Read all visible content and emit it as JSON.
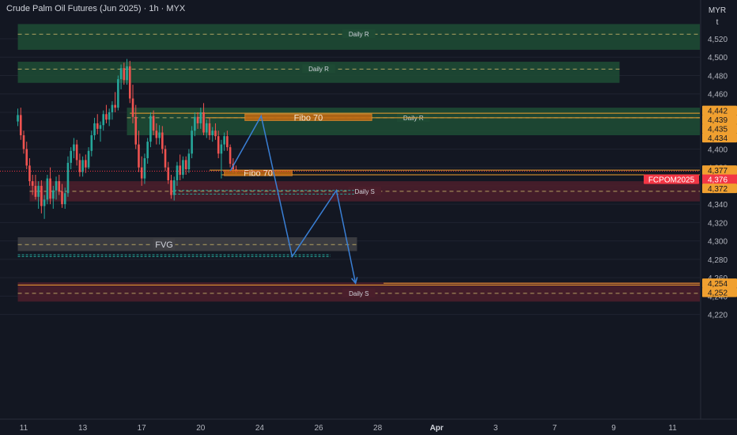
{
  "header": {
    "title": "Crude Palm Oil Futures (Jun 2025) · 1h · MYX",
    "currency_top": "MYR",
    "currency_bottom": "t"
  },
  "colors": {
    "background": "#131722",
    "resistance_zone": "#1e4a34",
    "support_zone": "#4a1e2b",
    "fvg_zone": "#3f3f44",
    "fibo_zone": "#c46a12",
    "bull_candle": "#26a69a",
    "bear_candle": "#ef5350",
    "projection": "#3a7fd5",
    "cyan_line": "#26a69a",
    "orange_line": "#f0a030",
    "price_tag": "#f23645"
  },
  "chart_data": {
    "type": "candlestick",
    "symbol": "FCPOM2025",
    "y_axis": {
      "ticks": [
        4520,
        4500,
        4480,
        4460,
        4440,
        4420,
        4400,
        4380,
        4360,
        4340,
        4320,
        4300,
        4280,
        4260,
        4240,
        4220
      ],
      "tick_labels": [
        "4,520",
        "4,500",
        "4,480",
        "4,460",
        "4,440",
        "4,420",
        "4,400",
        "4,380",
        "4,360",
        "4,340",
        "4,320",
        "4,300",
        "4,280",
        "4,260",
        "4,240",
        "4,220"
      ],
      "range": [
        4211,
        4536
      ]
    },
    "x_axis": {
      "labels": [
        "11",
        "13",
        "17",
        "20",
        "24",
        "26",
        "28",
        "Apr",
        "3",
        "7",
        "9",
        "11"
      ],
      "label_day_index": [
        0,
        2,
        4,
        6,
        8,
        10,
        12,
        14,
        16,
        18,
        20,
        22
      ]
    },
    "price_tags": [
      {
        "label": "4,442",
        "value": 4442,
        "color": "#f0a030"
      },
      {
        "label": "4,439",
        "value": 4439,
        "color": "#f0a030"
      },
      {
        "label": "4,435",
        "value": 4435,
        "color": "#f0a030"
      },
      {
        "label": "4,434",
        "value": 4434,
        "color": "#f0a030"
      },
      {
        "label": "4,377",
        "value": 4377,
        "color": "#f0a030"
      },
      {
        "label": "4,376",
        "value": 4376,
        "color": "#f23645"
      },
      {
        "label": "4,372",
        "value": 4372,
        "color": "#f0a030"
      },
      {
        "label": "4,254",
        "value": 4254,
        "color": "#f0a030"
      },
      {
        "label": "4,252",
        "value": 4252,
        "color": "#f0a030"
      }
    ],
    "symbol_tag": {
      "label": "FCPOM2025",
      "value": 4376
    },
    "zones": [
      {
        "label": "Daily R",
        "kind": "resistance",
        "y_top": 4536,
        "y_bottom": 4508,
        "mid": 4525,
        "x_start": -0.2,
        "x_end": 23.8
      },
      {
        "label": "Daily R",
        "kind": "resistance",
        "y_top": 4495,
        "y_bottom": 4472,
        "mid": 4487,
        "x_start": -0.2,
        "x_end": 20.2
      },
      {
        "label": "Daily R",
        "kind": "resistance",
        "y_top": 4445,
        "y_bottom": 4415,
        "mid": 4434,
        "x_start": 3.5,
        "x_end": 23.8
      },
      {
        "label": "Daily S",
        "kind": "support",
        "y_top": 4365,
        "y_bottom": 4343,
        "mid": 4354,
        "x_start": 0.2,
        "x_end": 23.8
      },
      {
        "label": "FVG",
        "kind": "fvg",
        "y_top": 4304,
        "y_bottom": 4289,
        "mid": 4296,
        "x_start": -0.2,
        "x_end": 11.3
      },
      {
        "label": "Daily S",
        "kind": "support",
        "y_top": 4255,
        "y_bottom": 4234,
        "mid": 4243,
        "x_start": -0.2,
        "x_end": 23.8
      }
    ],
    "fibo_boxes": [
      {
        "label": "Fibo 70",
        "y_top": 4438,
        "y_bottom": 4431,
        "x_start": 7.5,
        "x_end": 11.8
      },
      {
        "label": "Fibo 70",
        "y_top": 4377,
        "y_bottom": 4371,
        "x_start": 6.8,
        "x_end": 9.1
      }
    ],
    "horizontal_lines": [
      {
        "kind": "cyan",
        "y": 4355,
        "x_start": 5.1,
        "x_end": 11.2
      },
      {
        "kind": "cyan",
        "y": 4351,
        "x_start": 5.1,
        "x_end": 11.2
      },
      {
        "kind": "cyan",
        "y": 4285,
        "x_start": -0.2,
        "x_end": 10.4
      },
      {
        "kind": "cyan",
        "y": 4283,
        "x_start": -0.2,
        "x_end": 10.4
      },
      {
        "kind": "orange",
        "y": 4439,
        "x_start": 3.6,
        "x_end": 23.8
      },
      {
        "kind": "orange",
        "y": 4434,
        "x_start": 6.2,
        "x_end": 23.8
      },
      {
        "kind": "orange",
        "y": 4377,
        "x_start": 6.3,
        "x_end": 23.8
      },
      {
        "kind": "orange",
        "y": 4372,
        "x_start": 6.7,
        "x_end": 23.8
      },
      {
        "kind": "orange",
        "y": 4254,
        "x_start": 12.2,
        "x_end": 23.8
      },
      {
        "kind": "orange",
        "y": 4252,
        "x_start": -0.2,
        "x_end": 23.8
      }
    ],
    "current_price": 4376,
    "projection_path": [
      {
        "x": 7.0,
        "y": 4376
      },
      {
        "x": 8.05,
        "y": 4436
      },
      {
        "x": 9.1,
        "y": 4283
      },
      {
        "x": 10.6,
        "y": 4355
      },
      {
        "x": 11.25,
        "y": 4254
      }
    ],
    "candles": [
      {
        "x": -0.2,
        "o": 4430,
        "h": 4444,
        "l": 4425,
        "c": 4437
      },
      {
        "x": -0.1,
        "o": 4437,
        "h": 4445,
        "l": 4410,
        "c": 4415
      },
      {
        "x": 0.0,
        "o": 4415,
        "h": 4420,
        "l": 4395,
        "c": 4400
      },
      {
        "x": 0.1,
        "o": 4400,
        "h": 4408,
        "l": 4378,
        "c": 4382
      },
      {
        "x": 0.2,
        "o": 4382,
        "h": 4390,
        "l": 4360,
        "c": 4365
      },
      {
        "x": 0.3,
        "o": 4365,
        "h": 4372,
        "l": 4350,
        "c": 4360
      },
      {
        "x": 0.4,
        "o": 4360,
        "h": 4372,
        "l": 4345,
        "c": 4348
      },
      {
        "x": 0.5,
        "o": 4348,
        "h": 4365,
        "l": 4335,
        "c": 4360
      },
      {
        "x": 0.6,
        "o": 4360,
        "h": 4366,
        "l": 4330,
        "c": 4338
      },
      {
        "x": 0.7,
        "o": 4338,
        "h": 4350,
        "l": 4324,
        "c": 4345
      },
      {
        "x": 0.8,
        "o": 4345,
        "h": 4372,
        "l": 4340,
        "c": 4368
      },
      {
        "x": 0.9,
        "o": 4368,
        "h": 4380,
        "l": 4340,
        "c": 4346
      },
      {
        "x": 1.0,
        "o": 4346,
        "h": 4360,
        "l": 4335,
        "c": 4355
      },
      {
        "x": 1.1,
        "o": 4355,
        "h": 4370,
        "l": 4345,
        "c": 4365
      },
      {
        "x": 1.2,
        "o": 4365,
        "h": 4372,
        "l": 4350,
        "c": 4354
      },
      {
        "x": 1.3,
        "o": 4354,
        "h": 4362,
        "l": 4336,
        "c": 4340
      },
      {
        "x": 1.4,
        "o": 4340,
        "h": 4358,
        "l": 4335,
        "c": 4352
      },
      {
        "x": 1.5,
        "o": 4352,
        "h": 4392,
        "l": 4348,
        "c": 4385
      },
      {
        "x": 1.6,
        "o": 4385,
        "h": 4402,
        "l": 4378,
        "c": 4398
      },
      {
        "x": 1.7,
        "o": 4398,
        "h": 4412,
        "l": 4390,
        "c": 4405
      },
      {
        "x": 1.8,
        "o": 4405,
        "h": 4410,
        "l": 4382,
        "c": 4388
      },
      {
        "x": 1.9,
        "o": 4388,
        "h": 4395,
        "l": 4370,
        "c": 4375
      },
      {
        "x": 2.0,
        "o": 4375,
        "h": 4392,
        "l": 4370,
        "c": 4388
      },
      {
        "x": 2.1,
        "o": 4388,
        "h": 4394,
        "l": 4374,
        "c": 4380
      },
      {
        "x": 2.2,
        "o": 4380,
        "h": 4402,
        "l": 4378,
        "c": 4398
      },
      {
        "x": 2.3,
        "o": 4398,
        "h": 4420,
        "l": 4392,
        "c": 4415
      },
      {
        "x": 2.4,
        "o": 4415,
        "h": 4434,
        "l": 4410,
        "c": 4428
      },
      {
        "x": 2.5,
        "o": 4428,
        "h": 4438,
        "l": 4416,
        "c": 4422
      },
      {
        "x": 2.6,
        "o": 4422,
        "h": 4430,
        "l": 4408,
        "c": 4426
      },
      {
        "x": 2.7,
        "o": 4426,
        "h": 4442,
        "l": 4420,
        "c": 4438
      },
      {
        "x": 2.8,
        "o": 4438,
        "h": 4448,
        "l": 4428,
        "c": 4432
      },
      {
        "x": 2.9,
        "o": 4432,
        "h": 4444,
        "l": 4425,
        "c": 4440
      },
      {
        "x": 3.0,
        "o": 4440,
        "h": 4452,
        "l": 4432,
        "c": 4448
      },
      {
        "x": 3.1,
        "o": 4448,
        "h": 4462,
        "l": 4440,
        "c": 4445
      },
      {
        "x": 3.2,
        "o": 4445,
        "h": 4480,
        "l": 4442,
        "c": 4476
      },
      {
        "x": 3.3,
        "o": 4476,
        "h": 4492,
        "l": 4465,
        "c": 4488
      },
      {
        "x": 3.4,
        "o": 4488,
        "h": 4494,
        "l": 4470,
        "c": 4475
      },
      {
        "x": 3.5,
        "o": 4475,
        "h": 4498,
        "l": 4470,
        "c": 4490
      },
      {
        "x": 3.6,
        "o": 4490,
        "h": 4496,
        "l": 4450,
        "c": 4455
      },
      {
        "x": 3.7,
        "o": 4455,
        "h": 4470,
        "l": 4428,
        "c": 4435
      },
      {
        "x": 3.8,
        "o": 4435,
        "h": 4448,
        "l": 4400,
        "c": 4405
      },
      {
        "x": 3.9,
        "o": 4405,
        "h": 4420,
        "l": 4375,
        "c": 4380
      },
      {
        "x": 4.0,
        "o": 4380,
        "h": 4392,
        "l": 4360,
        "c": 4368
      },
      {
        "x": 4.1,
        "o": 4368,
        "h": 4395,
        "l": 4362,
        "c": 4390
      },
      {
        "x": 4.2,
        "o": 4390,
        "h": 4412,
        "l": 4384,
        "c": 4408
      },
      {
        "x": 4.3,
        "o": 4408,
        "h": 4440,
        "l": 4402,
        "c": 4436
      },
      {
        "x": 4.4,
        "o": 4436,
        "h": 4442,
        "l": 4415,
        "c": 4420
      },
      {
        "x": 4.5,
        "o": 4420,
        "h": 4428,
        "l": 4405,
        "c": 4412
      },
      {
        "x": 4.6,
        "o": 4412,
        "h": 4426,
        "l": 4405,
        "c": 4418
      },
      {
        "x": 4.7,
        "o": 4418,
        "h": 4425,
        "l": 4395,
        "c": 4400
      },
      {
        "x": 4.8,
        "o": 4400,
        "h": 4404,
        "l": 4376,
        "c": 4380
      },
      {
        "x": 4.9,
        "o": 4380,
        "h": 4386,
        "l": 4362,
        "c": 4366
      },
      {
        "x": 5.0,
        "o": 4366,
        "h": 4372,
        "l": 4346,
        "c": 4350
      },
      {
        "x": 5.1,
        "o": 4350,
        "h": 4370,
        "l": 4344,
        "c": 4366
      },
      {
        "x": 5.2,
        "o": 4366,
        "h": 4386,
        "l": 4360,
        "c": 4382
      },
      {
        "x": 5.3,
        "o": 4382,
        "h": 4394,
        "l": 4366,
        "c": 4372
      },
      {
        "x": 5.4,
        "o": 4372,
        "h": 4392,
        "l": 4368,
        "c": 4388
      },
      {
        "x": 5.5,
        "o": 4388,
        "h": 4392,
        "l": 4372,
        "c": 4378
      },
      {
        "x": 5.6,
        "o": 4378,
        "h": 4400,
        "l": 4374,
        "c": 4395
      },
      {
        "x": 5.7,
        "o": 4395,
        "h": 4425,
        "l": 4390,
        "c": 4420
      },
      {
        "x": 5.8,
        "o": 4420,
        "h": 4440,
        "l": 4414,
        "c": 4435
      },
      {
        "x": 5.9,
        "o": 4435,
        "h": 4440,
        "l": 4422,
        "c": 4428
      },
      {
        "x": 6.0,
        "o": 4428,
        "h": 4445,
        "l": 4422,
        "c": 4440
      },
      {
        "x": 6.1,
        "o": 4440,
        "h": 4450,
        "l": 4415,
        "c": 4418
      },
      {
        "x": 6.2,
        "o": 4418,
        "h": 4432,
        "l": 4412,
        "c": 4428
      },
      {
        "x": 6.3,
        "o": 4428,
        "h": 4434,
        "l": 4410,
        "c": 4415
      },
      {
        "x": 6.4,
        "o": 4415,
        "h": 4424,
        "l": 4408,
        "c": 4420
      },
      {
        "x": 6.5,
        "o": 4420,
        "h": 4428,
        "l": 4410,
        "c": 4414
      },
      {
        "x": 6.6,
        "o": 4414,
        "h": 4420,
        "l": 4390,
        "c": 4395
      },
      {
        "x": 6.7,
        "o": 4395,
        "h": 4410,
        "l": 4368,
        "c": 4405
      },
      {
        "x": 6.8,
        "o": 4405,
        "h": 4418,
        "l": 4398,
        "c": 4414
      },
      {
        "x": 6.9,
        "o": 4414,
        "h": 4420,
        "l": 4398,
        "c": 4402
      },
      {
        "x": 7.0,
        "o": 4402,
        "h": 4405,
        "l": 4380,
        "c": 4384
      },
      {
        "x": 7.1,
        "o": 4384,
        "h": 4390,
        "l": 4374,
        "c": 4378
      },
      {
        "x": 7.2,
        "o": 4378,
        "h": 4382,
        "l": 4373,
        "c": 4376
      }
    ]
  }
}
